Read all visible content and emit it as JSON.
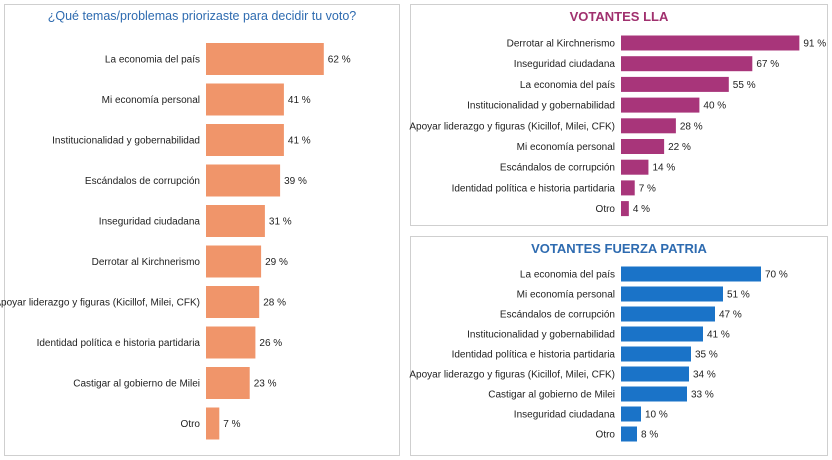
{
  "chart_data": [
    {
      "type": "bar",
      "orientation": "horizontal",
      "title": "¿Qué temas/problemas priorizaste para decidir tu voto?",
      "categories": [
        "La economia del país",
        "Mi economía personal",
        "Institucionalidad y gobernabilidad",
        "Escándalos de corrupción",
        "Inseguridad ciudadana",
        "Derrotar al Kirchnerismo",
        "Apoyar liderazgo y figuras (Kicillof, Milei, CFK)",
        "Identidad política e historia partidaria",
        "Castigar al gobierno de Milei",
        "Otro"
      ],
      "values": [
        62,
        41,
        41,
        39,
        31,
        29,
        28,
        26,
        23,
        7
      ],
      "value_suffix": " %",
      "color": "#f0956a"
    },
    {
      "type": "bar",
      "orientation": "horizontal",
      "title": "VOTANTES LLA",
      "categories": [
        "Derrotar al Kirchnerismo",
        "Inseguridad ciudadana",
        "La economia del país",
        "Institucionalidad y gobernabilidad",
        "Apoyar liderazgo y figuras (Kicillof, Milei, CFK)",
        "Mi economía personal",
        "Escándalos de corrupción",
        "Identidad política e historia partidaria",
        "Otro"
      ],
      "values": [
        91,
        67,
        55,
        40,
        28,
        22,
        14,
        7,
        4
      ],
      "value_suffix": " %",
      "color": "#a8357a"
    },
    {
      "type": "bar",
      "orientation": "horizontal",
      "title": "VOTANTES FUERZA PATRIA",
      "categories": [
        "La economia del país",
        "Mi economía personal",
        "Escándalos de corrupción",
        "Institucionalidad y gobernabilidad",
        "Identidad política e historia partidaria",
        "Apoyar liderazgo y figuras (Kicillof, Milei, CFK)",
        "Castigar al gobierno de Milei",
        "Inseguridad ciudadana",
        "Otro"
      ],
      "values": [
        70,
        51,
        47,
        41,
        35,
        34,
        33,
        10,
        8
      ],
      "value_suffix": " %",
      "color": "#1a73c8"
    }
  ]
}
